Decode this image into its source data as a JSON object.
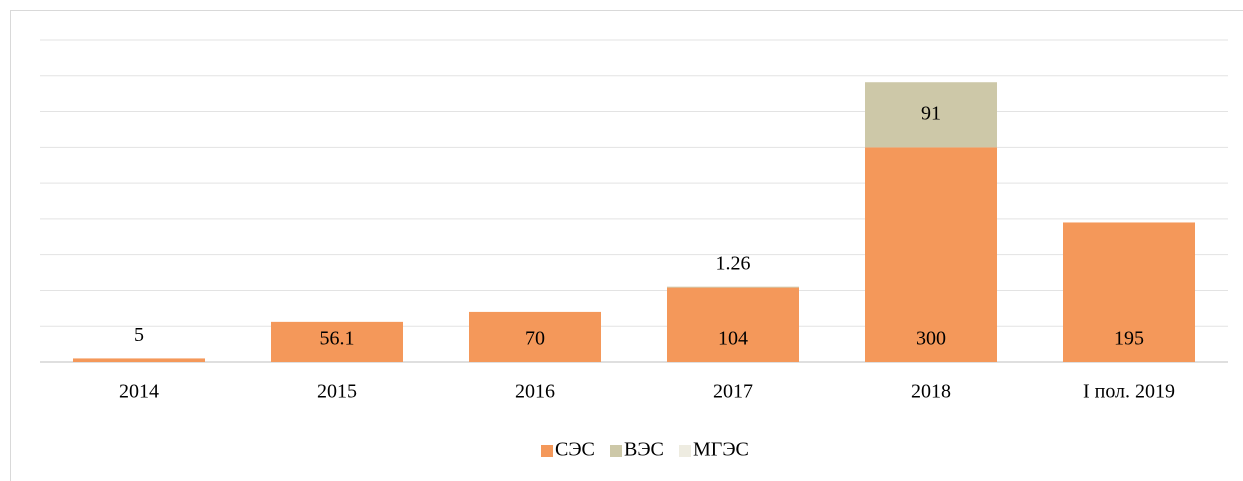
{
  "chart_data": {
    "type": "stacked_bar",
    "categories": [
      "2014",
      "2015",
      "2016",
      "2017",
      "2018",
      "I пол. 2019"
    ],
    "series": [
      {
        "name": "СЭС",
        "color": "#f4985a",
        "values": [
          5,
          56.1,
          70,
          104,
          300,
          195
        ]
      },
      {
        "name": "ВЭС",
        "color": "#cdc8a8",
        "values": [
          null,
          null,
          null,
          1.26,
          91,
          null
        ]
      },
      {
        "name": "МГЭС",
        "color": "#eeece1",
        "values": [
          null,
          null,
          null,
          null,
          null,
          null
        ]
      }
    ],
    "ylim": [
      0,
      450
    ],
    "yticks": [
      0,
      50,
      100,
      150,
      200,
      250,
      300,
      350,
      400,
      450
    ],
    "grid": true,
    "legend": "bottom"
  }
}
